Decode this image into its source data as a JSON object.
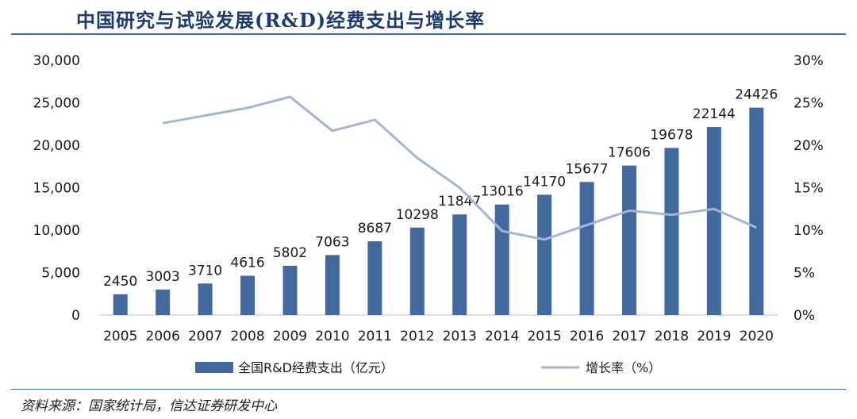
{
  "header": {
    "title": "中国研究与试验发展(R&D)经费支出与增长率"
  },
  "footer": {
    "source": "资料来源：国家统计局，信达证券研发中心"
  },
  "colors": {
    "bar": "#41699e",
    "line": "#a5b5d3",
    "rule": "#3a6bb5",
    "title": "#1f3a6e"
  },
  "chart_data": {
    "type": "bar",
    "categories": [
      "2005",
      "2006",
      "2007",
      "2008",
      "2009",
      "2010",
      "2011",
      "2012",
      "2013",
      "2014",
      "2015",
      "2016",
      "2017",
      "2018",
      "2019",
      "2020"
    ],
    "series": [
      {
        "name": "全国R&D经费支出（亿元）",
        "type": "bar",
        "axis": "left",
        "values": [
          2450,
          3003,
          3710,
          4616,
          5802,
          7063,
          8687,
          10298,
          11847,
          13016,
          14170,
          15677,
          17606,
          19678,
          22144,
          24426
        ],
        "labels": [
          "2450",
          "3003",
          "3710",
          "4616",
          "5802",
          "7063",
          "8687",
          "10298",
          "11847",
          "13016",
          "14170",
          "15677",
          "17606",
          "19678",
          "22144",
          "24426"
        ]
      },
      {
        "name": "增长率（%）",
        "type": "line",
        "axis": "right",
        "values": [
          null,
          22.6,
          23.5,
          24.4,
          25.7,
          21.7,
          23.0,
          18.5,
          15.0,
          9.9,
          8.9,
          10.6,
          12.3,
          11.8,
          12.5,
          10.3
        ]
      }
    ],
    "y_left": {
      "ylim": [
        0,
        30000
      ],
      "ticks": [
        0,
        5000,
        10000,
        15000,
        20000,
        25000,
        30000
      ],
      "tick_labels": [
        "0",
        "5,000",
        "10,000",
        "15,000",
        "20,000",
        "25,000",
        "30,000"
      ]
    },
    "y_right": {
      "ylim": [
        0,
        30
      ],
      "ticks": [
        0,
        5,
        10,
        15,
        20,
        25,
        30
      ],
      "tick_labels": [
        "0%",
        "5%",
        "10%",
        "15%",
        "20%",
        "25%",
        "30%"
      ]
    },
    "grid": false,
    "legend": "bottom"
  }
}
